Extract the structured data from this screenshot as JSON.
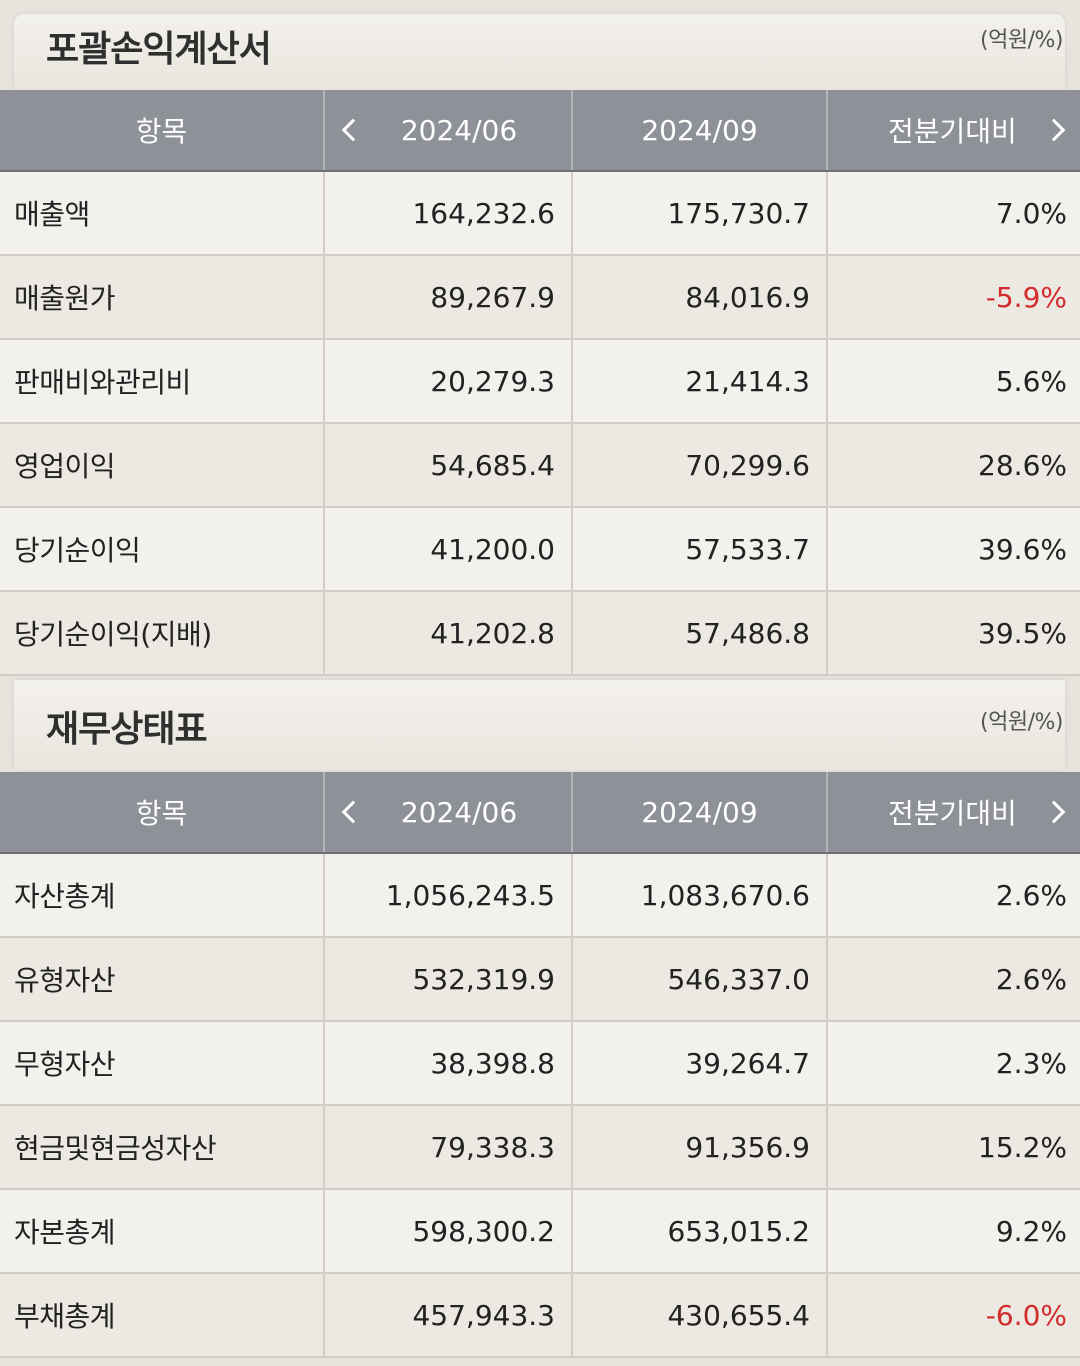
{
  "income_statement": {
    "title": "포괄손익계산서",
    "unit": "(억원/%)",
    "headers": [
      "항목",
      "2024/06",
      "2024/09",
      "전분기대비"
    ],
    "rows": [
      {
        "item": "매출액",
        "p1": "164,232.6",
        "p2": "175,730.7",
        "change": "7.0%"
      },
      {
        "item": "매출원가",
        "p1": "89,267.9",
        "p2": "84,016.9",
        "change": "-5.9%"
      },
      {
        "item": "판매비와관리비",
        "p1": "20,279.3",
        "p2": "21,414.3",
        "change": "5.6%"
      },
      {
        "item": "영업이익",
        "p1": "54,685.4",
        "p2": "70,299.6",
        "change": "28.6%"
      },
      {
        "item": "당기순이익",
        "p1": "41,200.0",
        "p2": "57,533.7",
        "change": "39.6%"
      },
      {
        "item": "당기순이익(지배)",
        "p1": "41,202.8",
        "p2": "57,486.8",
        "change": "39.5%"
      }
    ]
  },
  "balance_sheet": {
    "title": "재무상태표",
    "unit": "(억원/%)",
    "headers": [
      "항목",
      "2024/06",
      "2024/09",
      "전분기대비"
    ],
    "rows": [
      {
        "item": "자산총계",
        "p1": "1,056,243.5",
        "p2": "1,083,670.6",
        "change": "2.6%"
      },
      {
        "item": "유형자산",
        "p1": "532,319.9",
        "p2": "546,337.0",
        "change": "2.6%"
      },
      {
        "item": "무형자산",
        "p1": "38,398.8",
        "p2": "39,264.7",
        "change": "2.3%"
      },
      {
        "item": "현금및현금성자산",
        "p1": "79,338.3",
        "p2": "91,356.9",
        "change": "15.2%"
      },
      {
        "item": "자본총계",
        "p1": "598,300.2",
        "p2": "653,015.2",
        "change": "9.2%"
      },
      {
        "item": "부채총계",
        "p1": "457,943.3",
        "p2": "430,655.4",
        "change": "-6.0%"
      }
    ]
  },
  "colors": {
    "negative": "#d22c2c",
    "header_bg": "#8e9197"
  },
  "icons": {
    "prev": "chevron-left-icon",
    "next": "chevron-right-icon"
  }
}
